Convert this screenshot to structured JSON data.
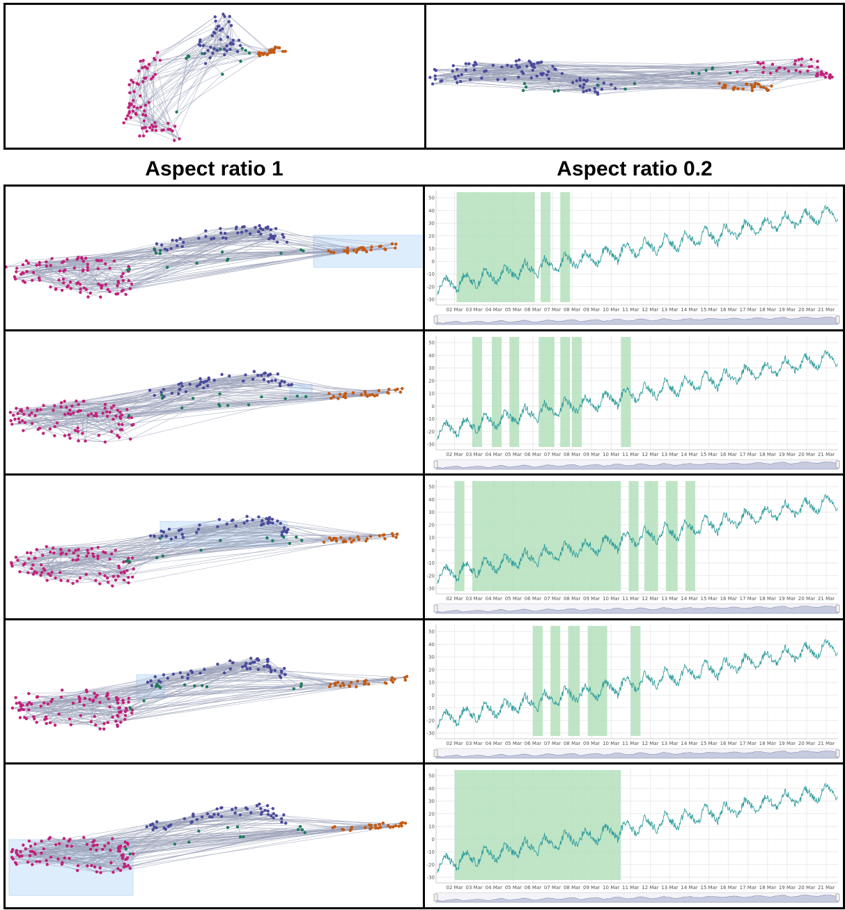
{
  "captions": {
    "left": "Aspect ratio 1",
    "right": "Aspect ratio 0.2"
  },
  "colors": {
    "purple": "#4a4a9c",
    "magenta": "#c2207a",
    "green": "#1e7a5c",
    "orange": "#c45a12",
    "edge": "#9aa0b8",
    "selection": "#d6e8fb",
    "highlight": "#b4e0bc",
    "series": "#2a9a9a"
  },
  "timeseries": {
    "y_ticks": [
      "50",
      "40",
      "30",
      "20",
      "10",
      "0",
      "-10",
      "-20",
      "-30"
    ],
    "x_ticks": [
      "02 Mar",
      "03 Mar",
      "04 Mar",
      "05 Mar",
      "06 Mar",
      "07 Mar",
      "08 Mar",
      "09 Mar",
      "10 Mar",
      "11 Mar",
      "12 Mar",
      "13 Mar",
      "14 Mar",
      "15 Mar",
      "16 Mar",
      "17 Mar",
      "18 Mar",
      "19 Mar",
      "20 Mar",
      "21 Mar"
    ]
  },
  "rows": [
    {
      "selection": "orange-cluster",
      "highlighted_days": [
        [
          1.1,
          5.1
        ],
        [
          5.4,
          5.9
        ],
        [
          6.4,
          6.9
        ]
      ]
    },
    {
      "selection": "green-cluster",
      "highlighted_days": [
        [
          1.9,
          2.4
        ],
        [
          2.9,
          3.4
        ],
        [
          3.8,
          4.3
        ],
        [
          5.3,
          6.1
        ],
        [
          6.4,
          6.9
        ],
        [
          7.0,
          7.5
        ],
        [
          9.5,
          10.0
        ]
      ]
    },
    {
      "selection": "purple-cluster",
      "highlighted_days": [
        [
          1.0,
          1.5
        ],
        [
          1.9,
          9.5
        ],
        [
          9.9,
          10.4
        ],
        [
          10.7,
          11.4
        ],
        [
          11.8,
          12.4
        ],
        [
          12.8,
          13.3
        ]
      ]
    },
    {
      "selection": "green-magenta-bridge",
      "highlighted_days": [
        [
          5.0,
          5.5
        ],
        [
          5.9,
          6.4
        ],
        [
          6.8,
          7.4
        ],
        [
          7.8,
          8.3
        ],
        [
          8.3,
          8.8
        ],
        [
          10.0,
          10.5
        ]
      ]
    },
    {
      "selection": "magenta-cluster",
      "highlighted_days": [
        [
          1.0,
          9.5
        ]
      ]
    }
  ]
}
